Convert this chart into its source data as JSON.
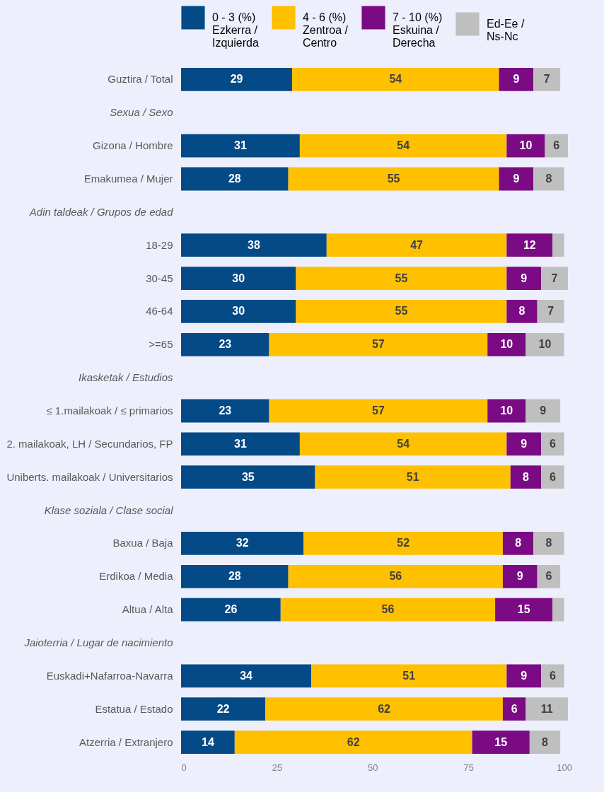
{
  "chart_data": {
    "type": "bar",
    "orientation": "horizontal",
    "stacked": true,
    "data_labels": true,
    "legend": "top",
    "grid": false,
    "categories": [
      "Guztira / Total",
      "Sexua / Sexo",
      "Gizona /  Hombre",
      "Emakumea / Mujer",
      "Adin taldeak / Grupos de edad",
      "18-29",
      "30-45",
      "46-64",
      ">=65",
      "Ikasketak / Estudios",
      "≤ 1.mailakoak / ≤ primarios",
      "2. mailakoak, LH / Secundarios, FP",
      "Uniberts. mailakoak / Universitarios",
      "Klase soziala / Clase social",
      "Baxua / Baja",
      "Erdikoa / Media",
      "Altua / Alta",
      "Jaioterria / Lugar de nacimiento",
      "Euskadi+Nafarroa-Navarra",
      "Estatua / Estado",
      "Atzerria / Extranjero"
    ],
    "series": [
      {
        "name": "0 - 3 (%)\nEzkerra /\nIzquierda",
        "color": "#034a86",
        "values": [
          29,
          null,
          31,
          28,
          null,
          38,
          30,
          30,
          23,
          null,
          23,
          31,
          35,
          null,
          32,
          28,
          26,
          null,
          34,
          22,
          14
        ]
      },
      {
        "name": "4 - 6 (%)\nZentroa /\nCentro",
        "color": "#ffc000",
        "values": [
          54,
          null,
          54,
          55,
          null,
          47,
          55,
          55,
          57,
          null,
          57,
          54,
          51,
          null,
          52,
          56,
          56,
          null,
          51,
          62,
          62
        ]
      },
      {
        "name": "7 - 10 (%)\nEskuina /\nDerecha",
        "color": "#7a0b84",
        "values": [
          9,
          null,
          10,
          9,
          null,
          12,
          9,
          8,
          10,
          null,
          10,
          9,
          8,
          null,
          8,
          9,
          15,
          null,
          9,
          6,
          15
        ]
      },
      {
        "name": "Ed-Ee /\nNs-Nc",
        "color": "#bfbfbf",
        "values": [
          7,
          null,
          6,
          8,
          null,
          3,
          7,
          7,
          10,
          null,
          9,
          6,
          6,
          null,
          8,
          6,
          3,
          null,
          6,
          11,
          8
        ],
        "value_labels": [
          "7",
          null,
          "6",
          "8",
          null,
          null,
          "7",
          "7",
          "10",
          null,
          "9",
          "6",
          "6",
          null,
          "8",
          "6",
          null,
          null,
          "6",
          "11",
          "8"
        ]
      }
    ],
    "xlim": [
      0,
      101
    ],
    "xticks": [
      0,
      25,
      50,
      75,
      100
    ]
  }
}
